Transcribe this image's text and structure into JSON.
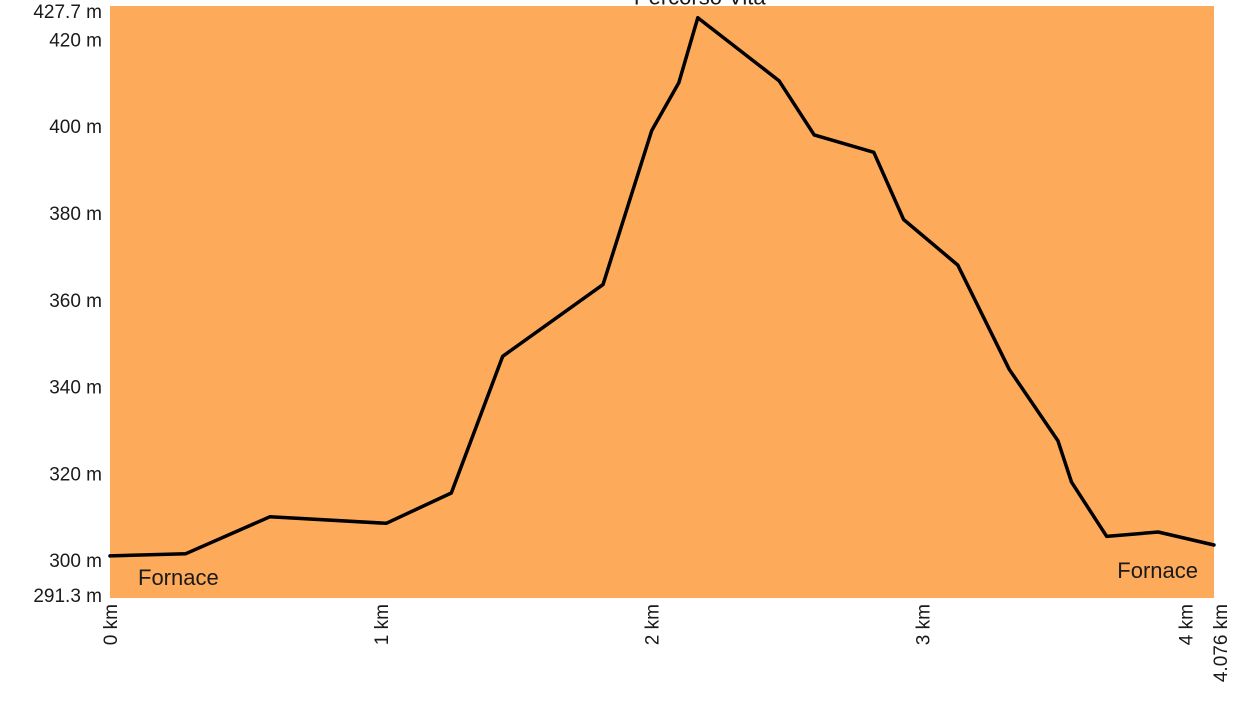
{
  "chart_data": {
    "type": "area",
    "title": "",
    "xlabel": "",
    "ylabel": "",
    "grid": false,
    "legend": "none",
    "background_color": "#fdaa5b",
    "line_color": "#000000",
    "xlim": [
      0,
      4.076
    ],
    "ylim": [
      291.3,
      427.7
    ],
    "y_ticks": [
      {
        "value": 427.7,
        "label": "427.7 m"
      },
      {
        "value": 420,
        "label": "420 m"
      },
      {
        "value": 400,
        "label": "400 m"
      },
      {
        "value": 380,
        "label": "380 m"
      },
      {
        "value": 360,
        "label": "360 m"
      },
      {
        "value": 340,
        "label": "340 m"
      },
      {
        "value": 320,
        "label": "320 m"
      },
      {
        "value": 300,
        "label": "300 m"
      },
      {
        "value": 291.3,
        "label": "291.3 m"
      }
    ],
    "x_ticks": [
      {
        "value": 0,
        "label": "0 km"
      },
      {
        "value": 1,
        "label": "1 km"
      },
      {
        "value": 2,
        "label": "2 km"
      },
      {
        "value": 3,
        "label": "3 km"
      },
      {
        "value": 4,
        "label": "4 km"
      },
      {
        "value": 4.076,
        "label": "4.076 km"
      }
    ],
    "series": [
      {
        "x": [
          0,
          0.28,
          0.59,
          1.02,
          1.26,
          1.45,
          1.82,
          2.0,
          2.1,
          2.17,
          2.47,
          2.6,
          2.82,
          2.93,
          3.13,
          3.32,
          3.5,
          3.55,
          3.68,
          3.87,
          4.076
        ],
        "y": [
          301,
          301.5,
          310,
          308.5,
          315.5,
          347,
          363.5,
          399,
          410,
          425,
          410.5,
          398,
          394,
          378.5,
          368,
          344,
          327.5,
          318,
          305.5,
          306.5,
          303.5
        ]
      }
    ],
    "annotations": [
      {
        "text": "Fornace",
        "x": 0.1,
        "y": 301
      },
      {
        "text": "Percorso Vita",
        "x": 2.17,
        "y": 425
      },
      {
        "text": "Fornace",
        "x": 4.076,
        "y": 303.5
      }
    ]
  }
}
